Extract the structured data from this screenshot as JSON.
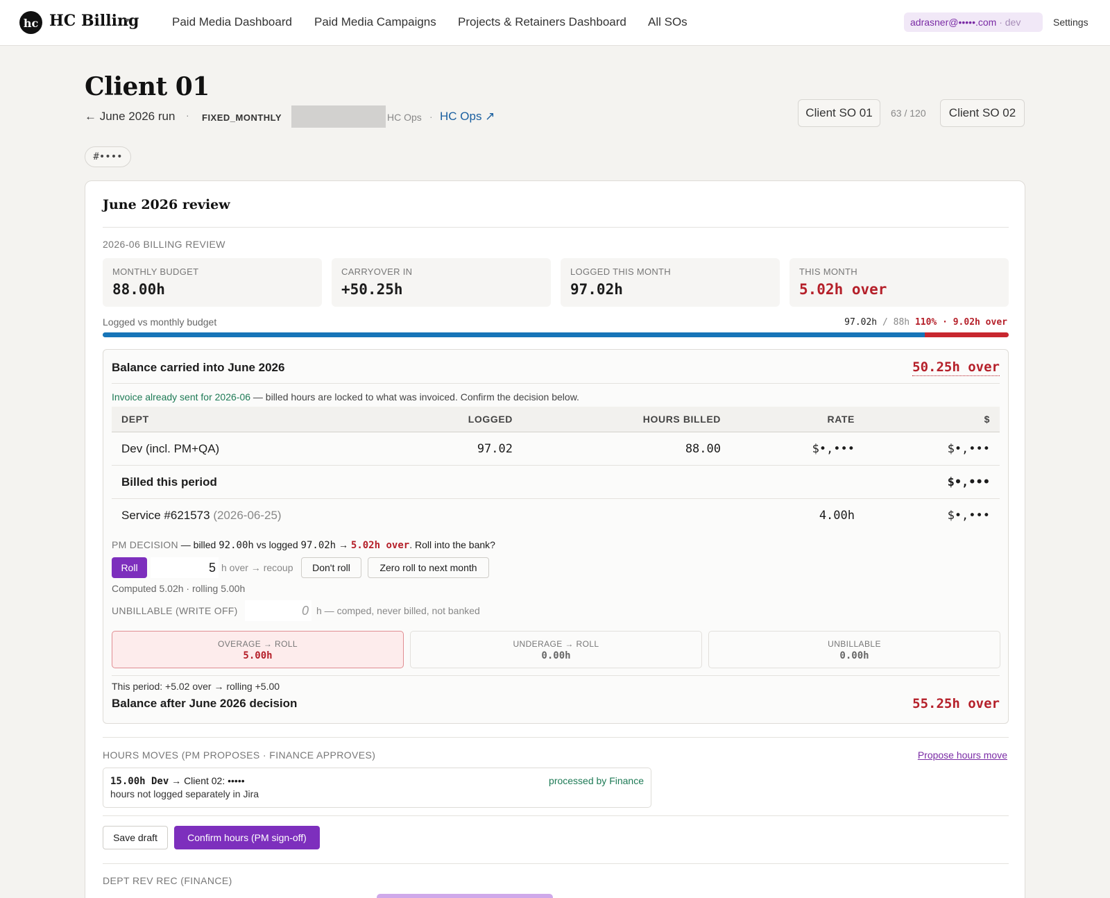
{
  "nav": {
    "logo_text": "hc",
    "brand": "HC Billing",
    "links": [
      "Paid Media Dashboard",
      "Paid Media Campaigns",
      "Projects & Retainers Dashboard",
      "All SOs"
    ],
    "user_email": "adrasner@•••••.com",
    "user_env": " · dev",
    "settings": "Settings"
  },
  "header": {
    "title": "Client 01",
    "back": "← June 2026 run",
    "separator": "·",
    "billing_kind": "FIXED_MONTHLY",
    "ops_small": "HC Ops",
    "ops_link": "HC Ops ↗",
    "so_prev": "Client SO 01",
    "so_count": "63 / 120",
    "so_next": "Client SO 02",
    "tag": "#••••"
  },
  "review": {
    "title": "June 2026 review",
    "section_label": "2026-06 BILLING REVIEW",
    "stats": [
      {
        "label": "MONTHLY BUDGET",
        "value": "88.00h",
        "tone": "normal"
      },
      {
        "label": "CARRYOVER IN",
        "value": "+50.25h",
        "tone": "normal"
      },
      {
        "label": "LOGGED THIS MONTH",
        "value": "97.02h",
        "tone": "normal"
      },
      {
        "label": "THIS MONTH",
        "value": "5.02h over",
        "tone": "red"
      }
    ],
    "progress": {
      "label": "Logged vs monthly budget",
      "logged": "97.02h",
      "slash": " / ",
      "budget": "88h",
      "pct_over": "110% · 9.02h over",
      "logged_fraction": 1.1025
    },
    "balance": {
      "title": "Balance carried into June 2026",
      "value": "50.25h over",
      "invoice_note_green": "Invoice already sent for 2026-06",
      "invoice_note_rest": " — billed hours are locked to what was invoiced. Confirm the decision below.",
      "columns": [
        "DEPT",
        "LOGGED",
        "HOURS BILLED",
        "RATE",
        "$"
      ],
      "rows": [
        {
          "dept": "Dev (incl. PM+QA)",
          "logged": "97.02",
          "billed": "88.00",
          "rate": "$•,•••",
          "amount": "$•,•••"
        }
      ],
      "billed_label": "Billed this period",
      "billed_amount": "$•,•••",
      "service_label": "Service #621573",
      "service_date": " (2026-06-25)",
      "service_hours": "4.00h",
      "service_amount": "$•,•••"
    },
    "decision": {
      "label": "PM DECISION",
      "text_a": " — billed ",
      "billed": "92.00h",
      "text_b": " vs logged ",
      "logged": "97.02h",
      "text_c": " → ",
      "over": "5.02h over",
      "text_d": ". Roll into the bank?",
      "roll_label": "Roll",
      "roll_value": "5",
      "roll_after": "h over → recoup",
      "dont_roll": "Don't roll",
      "zero_roll": "Zero roll to next month",
      "computed": "Computed 5.02h · rolling 5.00h",
      "unbillable_label": "UNBILLABLE (WRITE OFF)",
      "unbillable_value": "0",
      "unbillable_after": "h — comped, never billed, not banked"
    },
    "tiles": [
      {
        "label": "OVERAGE → ROLL",
        "value": "5.00h",
        "active": true
      },
      {
        "label": "UNDERAGE → ROLL",
        "value": "0.00h",
        "active": false
      },
      {
        "label": "UNBILLABLE",
        "value": "0.00h",
        "active": false
      }
    ],
    "period_note": "This period: +5.02 over → rolling +5.00",
    "after_title": "Balance after June 2026 decision",
    "after_value": "55.25h over",
    "moves": {
      "label": "HOURS MOVES (PM PROPOSES · FINANCE APPROVES)",
      "propose": "Propose hours move",
      "item_hours": "15.00h Dev",
      "item_target": " → Client 02: •••••",
      "item_note": "hours not logged separately in Jira",
      "item_status": "processed by Finance"
    },
    "actions": {
      "save": "Save draft",
      "confirm": "Confirm hours (PM sign-off)"
    },
    "rev_rec_label": "DEPT REV REC (FINANCE)"
  },
  "colors": {
    "accent": "#7d2fbd",
    "progress_blue": "#1775b8",
    "over_red": "#b5202a",
    "link_blue": "#1a5fa0",
    "success_green": "#1d7a55"
  }
}
